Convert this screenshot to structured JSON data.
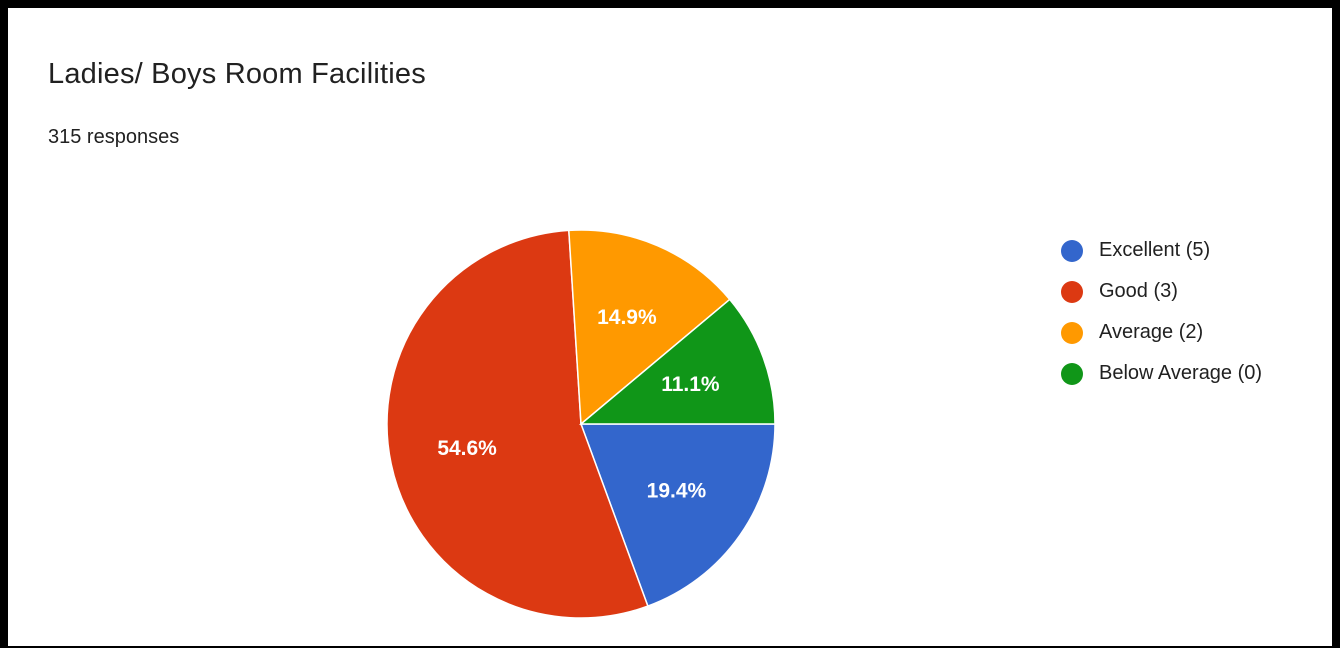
{
  "title": "Ladies/ Boys Room Facilities",
  "responses_label": "315 responses",
  "chart_data": {
    "type": "pie",
    "title": "Ladies/ Boys Room Facilities",
    "slices": [
      {
        "label": "Excellent (5)",
        "value": 19.4,
        "color": "#3366cc"
      },
      {
        "label": "Good (3)",
        "value": 54.6,
        "color": "#dc3912"
      },
      {
        "label": "Average (2)",
        "value": 14.9,
        "color": "#ff9900"
      },
      {
        "label": "Below Average (0)",
        "value": 11.1,
        "color": "#109618"
      }
    ],
    "legend": "right"
  }
}
